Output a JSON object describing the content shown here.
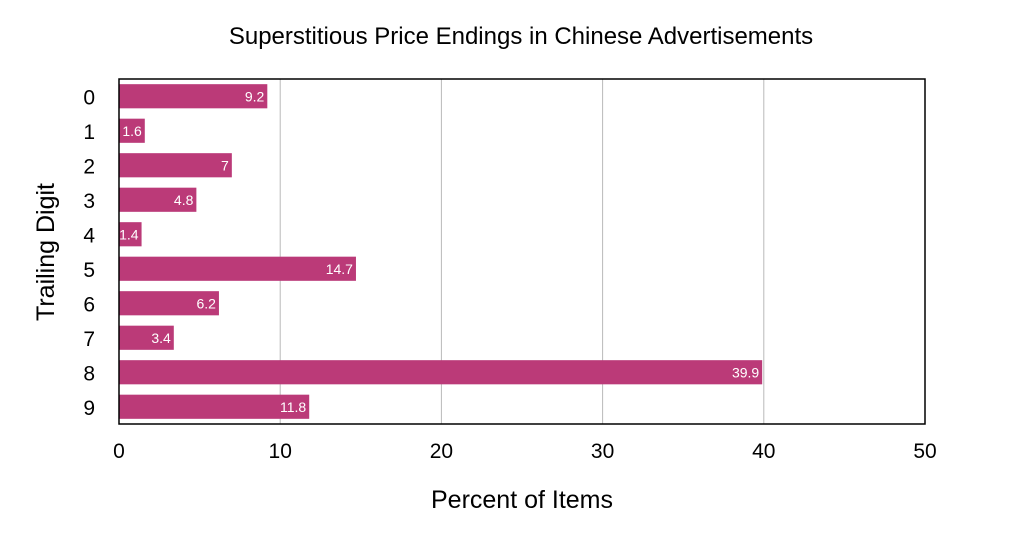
{
  "chart_data": {
    "type": "bar",
    "orientation": "horizontal",
    "title": "Superstitious Price Endings in Chinese Advertisements",
    "xlabel": "Percent of Items",
    "ylabel": "Trailing Digit",
    "categories": [
      "0",
      "1",
      "2",
      "3",
      "4",
      "5",
      "6",
      "7",
      "8",
      "9"
    ],
    "values": [
      9.2,
      1.6,
      7,
      4.8,
      1.4,
      14.7,
      6.2,
      3.4,
      39.9,
      11.8
    ],
    "data_labels": [
      "9.2",
      "1.6",
      "7",
      "4.8",
      "1.4",
      "14.7",
      "6.2",
      "3.4",
      "39.9",
      "11.8"
    ],
    "xlim": [
      0,
      50
    ],
    "xticks": [
      "0",
      "10",
      "20",
      "30",
      "40",
      "50"
    ],
    "xtick_values": [
      0,
      10,
      20,
      30,
      40,
      50
    ],
    "grid": "vertical",
    "bar_color": "#bb3a78",
    "data_label_color": "#ffffff"
  }
}
